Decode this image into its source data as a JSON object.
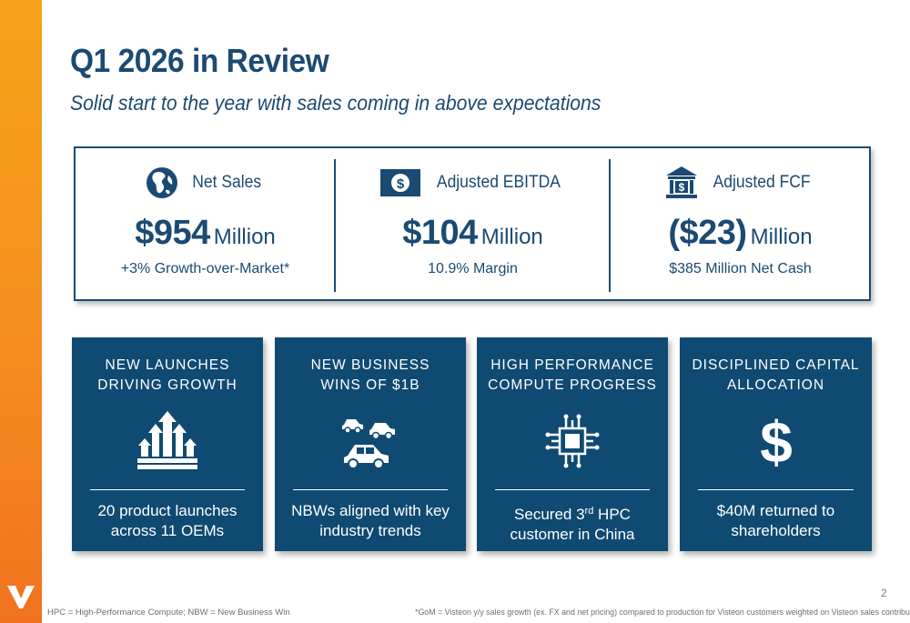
{
  "header": {
    "title": "Q1 2026 in Review",
    "subtitle": "Solid start to the year with sales coming in above expectations"
  },
  "summary": {
    "metrics": [
      {
        "icon": "globe-icon",
        "label": "Net Sales",
        "value": "$954",
        "unit": "Million",
        "sub": "+3% Growth-over-Market*"
      },
      {
        "icon": "dollar-bill-icon",
        "label": "Adjusted EBITDA",
        "value": "$104",
        "unit": "Million",
        "sub": "10.9% Margin"
      },
      {
        "icon": "bank-icon",
        "label": "Adjusted FCF",
        "value": "($23)",
        "unit": "Million",
        "sub": "$385 Million Net Cash"
      }
    ]
  },
  "highlights": [
    {
      "icon": "growth-arrows-icon",
      "title": "NEW LAUNCHES\nDRIVING GROWTH",
      "body": "20 product launches across 11 OEMs"
    },
    {
      "icon": "cars-icon",
      "title": "NEW BUSINESS\nWINS OF $1B",
      "body": "NBWs aligned with key industry trends"
    },
    {
      "icon": "chip-icon",
      "title": "HIGH PERFORMANCE\nCOMPUTE PROGRESS",
      "body_pre": "Secured 3",
      "body_sup": "rd",
      "body_post": " HPC customer in China"
    },
    {
      "icon": "dollar-sign-icon",
      "title": "DISCIPLINED CAPITAL\nALLOCATION",
      "body": "$40M returned to shareholders"
    }
  ],
  "footer": {
    "page_number": "2",
    "left_note": "HPC = High-Performance Compute; NBW = New Business Win",
    "right_note": "*GoM = Visteon y/y sales growth (ex. FX and net pricing) compared to production for Visteon customers weighted on Visteon sales contribution."
  },
  "colors": {
    "navy": "#1b4a73",
    "card": "#0f4a72",
    "accent_orange": "#f58e1e"
  }
}
